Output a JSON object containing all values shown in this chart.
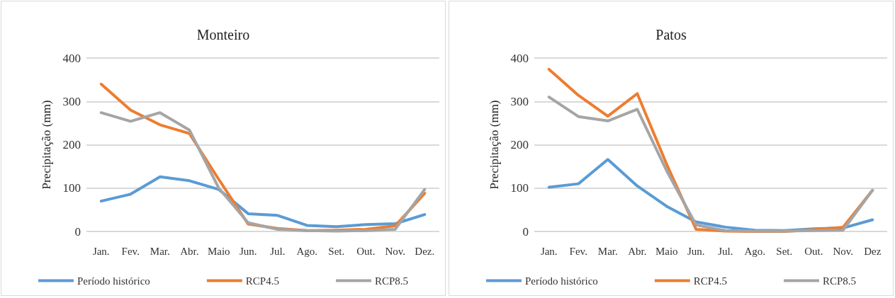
{
  "chart_data": [
    {
      "type": "line",
      "title": "Monteiro",
      "ylabel": "Precipitação (mm)",
      "categories": [
        "Jan.",
        "Fev.",
        "Mar.",
        "Abr.",
        "Maio",
        "Jun.",
        "Jul.",
        "Ago.",
        "Set.",
        "Out.",
        "Nov.",
        "Dez."
      ],
      "ylim": [
        0,
        400
      ],
      "yticks": [
        0,
        100,
        200,
        300,
        400
      ],
      "grid": "y",
      "legend": "bottom",
      "marker": "none",
      "line_style": "solid",
      "series": [
        {
          "name": "Período histórico",
          "color": "#5b9bd5",
          "values": [
            70,
            86,
            126,
            117,
            97,
            41,
            37,
            14,
            11,
            16,
            18,
            39
          ]
        },
        {
          "name": "RCP4.5",
          "color": "#ed7d31",
          "values": [
            340,
            280,
            246,
            226,
            120,
            17,
            7,
            2,
            3,
            5,
            13,
            88
          ]
        },
        {
          "name": "RCP8.5",
          "color": "#a5a5a5",
          "values": [
            274,
            254,
            274,
            234,
            100,
            20,
            5,
            2,
            1,
            2,
            5,
            97
          ]
        }
      ]
    },
    {
      "type": "line",
      "title": "Patos",
      "ylabel": "Precipitação (mm)",
      "categories": [
        "Jan.",
        "Fev.",
        "Mar.",
        "Abr.",
        "Maio",
        "Jun.",
        "Jul.",
        "Ago.",
        "Set.",
        "Out.",
        "Nov.",
        "Dez"
      ],
      "ylim": [
        0,
        400
      ],
      "yticks": [
        0,
        100,
        200,
        300,
        400
      ],
      "grid": "y",
      "legend": "bottom",
      "marker": "none",
      "line_style": "solid",
      "series": [
        {
          "name": "Período histórico",
          "color": "#5b9bd5",
          "values": [
            102,
            110,
            166,
            105,
            58,
            22,
            10,
            3,
            2,
            6,
            8,
            27
          ]
        },
        {
          "name": "RCP4.5",
          "color": "#ed7d31",
          "values": [
            374,
            314,
            266,
            318,
            155,
            5,
            1,
            0,
            0,
            4,
            10,
            95
          ]
        },
        {
          "name": "RCP8.5",
          "color": "#a5a5a5",
          "values": [
            310,
            265,
            255,
            282,
            140,
            15,
            2,
            1,
            1,
            2,
            3,
            95
          ]
        }
      ]
    }
  ]
}
